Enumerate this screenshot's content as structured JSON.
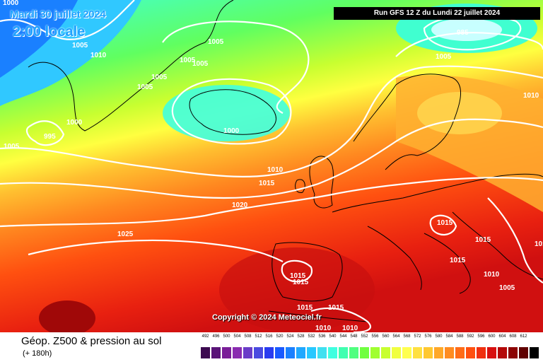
{
  "header": {
    "date": "Mardi 30 juillet 2024",
    "local_time": "2:00 locale",
    "run": "Run GFS 12 Z du Lundi 22 juillet 2024",
    "copyright": "Copyright © 2024 Meteociel.fr"
  },
  "footer": {
    "title": "Géop. Z500 & pression au sol",
    "subtitle": "(+ 180h)"
  },
  "isobars": [
    "1000",
    "1005",
    "1010",
    "1005",
    "1005",
    "1005",
    "1005",
    "1005",
    "995",
    "1000",
    "1005",
    "1000",
    "985",
    "1005",
    "1010",
    "1010",
    "1015",
    "1020",
    "1025",
    "1015",
    "1015",
    "1015",
    "1015",
    "1010",
    "1005",
    "1010",
    "1015",
    "1015",
    "1015",
    "1010",
    "1010"
  ],
  "legend": {
    "ticks": [
      "492",
      "496",
      "500",
      "504",
      "508",
      "512",
      "516",
      "520",
      "524",
      "528",
      "532",
      "536",
      "540",
      "544",
      "548",
      "552",
      "556",
      "560",
      "564",
      "568",
      "572",
      "576",
      "580",
      "584",
      "588",
      "592",
      "596",
      "600",
      "604",
      "608",
      "612"
    ],
    "colors": [
      "#3c0a50",
      "#5a1478",
      "#7a1e98",
      "#8a2cb0",
      "#6a3cc8",
      "#4a4ae0",
      "#2a3cf0",
      "#1a5aff",
      "#1a80ff",
      "#20a8ff",
      "#28c8ff",
      "#40e0f0",
      "#40ffe0",
      "#40ffb0",
      "#50ff80",
      "#70ff40",
      "#a0ff30",
      "#c8ff30",
      "#f0ff40",
      "#ffff50",
      "#ffe040",
      "#ffc830",
      "#ffa828",
      "#ff8c20",
      "#ff6c18",
      "#ff5010",
      "#f03010",
      "#d81010",
      "#b40808",
      "#8c0404",
      "#600000",
      "#000000"
    ]
  }
}
